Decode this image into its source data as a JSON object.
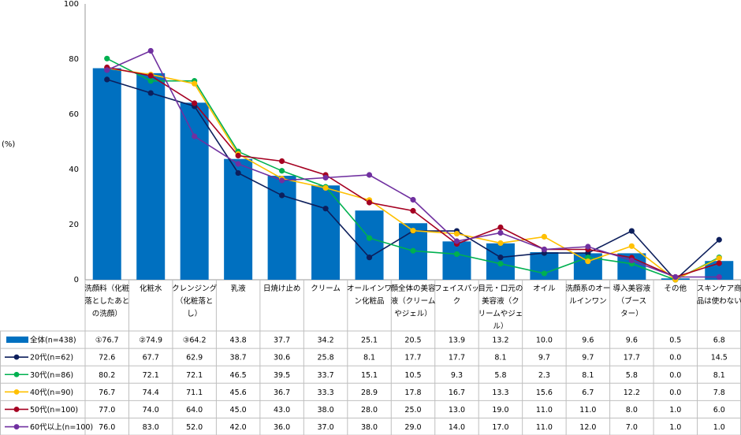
{
  "chart_data": {
    "type": "bar",
    "ylabel": "(%)",
    "ylim": [
      0,
      100
    ],
    "yticks": [
      0,
      20,
      40,
      60,
      80,
      100
    ],
    "categories": [
      [
        "洗顔料（化粧",
        "落としたあと",
        "の洗顔）"
      ],
      [
        "化粧水"
      ],
      [
        "クレンジング",
        "（化粧落と",
        "し）"
      ],
      [
        "乳液"
      ],
      [
        "日焼け止め"
      ],
      [
        "クリーム"
      ],
      [
        "オールインワ",
        "ン化粧品"
      ],
      [
        "顔全体の美容",
        "液（クリーム",
        "やジェル）"
      ],
      [
        "フェイスパッ",
        "ク"
      ],
      [
        "目元・口元の",
        "美容液（ク",
        "リームやジェ",
        "ル）"
      ],
      [
        "オイル"
      ],
      [
        "洗顔系のオー",
        "ルインワン"
      ],
      [
        "導入美容液",
        "（ブース",
        "ター）"
      ],
      [
        "その他"
      ],
      [
        "スキンケア商",
        "品は使わない"
      ]
    ],
    "bar_series": {
      "name": "全体(n=438)",
      "color": "#0070C0",
      "values": [
        76.7,
        74.9,
        64.2,
        43.8,
        37.7,
        34.2,
        25.1,
        20.5,
        13.9,
        13.2,
        10.0,
        9.6,
        9.6,
        0.5,
        6.8
      ],
      "table_labels": [
        "①76.7",
        "②74.9",
        "③64.2",
        "43.8",
        "37.7",
        "34.2",
        "25.1",
        "20.5",
        "13.9",
        "13.2",
        "10.0",
        "9.6",
        "9.6",
        "0.5",
        "6.8"
      ]
    },
    "line_series": [
      {
        "name": "20代(n=62)",
        "color": "#0D1F5C",
        "values": [
          72.6,
          67.7,
          62.9,
          38.7,
          30.6,
          25.8,
          8.1,
          17.7,
          17.7,
          8.1,
          9.7,
          9.7,
          17.7,
          0.0,
          14.5
        ],
        "table_labels": [
          "72.6",
          "67.7",
          "62.9",
          "38.7",
          "30.6",
          "25.8",
          "8.1",
          "17.7",
          "17.7",
          "8.1",
          "9.7",
          "9.7",
          "17.7",
          "0.0",
          "14.5"
        ]
      },
      {
        "name": "30代(n=86)",
        "color": "#00B050",
        "values": [
          80.2,
          72.1,
          72.1,
          46.5,
          39.5,
          33.7,
          15.1,
          10.5,
          9.3,
          5.8,
          2.3,
          8.1,
          5.8,
          0.0,
          8.1
        ],
        "table_labels": [
          "80.2",
          "72.1",
          "72.1",
          "46.5",
          "39.5",
          "33.7",
          "15.1",
          "10.5",
          "9.3",
          "5.8",
          "2.3",
          "8.1",
          "5.8",
          "0.0",
          "8.1"
        ]
      },
      {
        "name": "40代(n=90)",
        "color": "#FFC000",
        "values": [
          76.7,
          74.4,
          71.1,
          45.6,
          36.7,
          33.3,
          28.9,
          17.8,
          16.7,
          13.3,
          15.6,
          6.7,
          12.2,
          0.0,
          7.8
        ],
        "table_labels": [
          "76.7",
          "74.4",
          "71.1",
          "45.6",
          "36.7",
          "33.3",
          "28.9",
          "17.8",
          "16.7",
          "13.3",
          "15.6",
          "6.7",
          "12.2",
          "0.0",
          "7.8"
        ]
      },
      {
        "name": "50代(n=100)",
        "color": "#A50021",
        "values": [
          77.0,
          74.0,
          64.0,
          45.0,
          43.0,
          38.0,
          28.0,
          25.0,
          13.0,
          19.0,
          11.0,
          11.0,
          8.0,
          1.0,
          6.0
        ],
        "table_labels": [
          "77.0",
          "74.0",
          "64.0",
          "45.0",
          "43.0",
          "38.0",
          "28.0",
          "25.0",
          "13.0",
          "19.0",
          "11.0",
          "11.0",
          "8.0",
          "1.0",
          "6.0"
        ]
      },
      {
        "name": "60代以上(n=100)",
        "color": "#7030A0",
        "values": [
          76.0,
          83.0,
          52.0,
          42.0,
          36.0,
          37.0,
          38.0,
          29.0,
          14.0,
          17.0,
          11.0,
          12.0,
          7.0,
          1.0,
          1.0
        ],
        "table_labels": [
          "76.0",
          "83.0",
          "52.0",
          "42.0",
          "36.0",
          "37.0",
          "38.0",
          "29.0",
          "14.0",
          "17.0",
          "11.0",
          "12.0",
          "7.0",
          "1.0",
          "1.0"
        ]
      }
    ]
  }
}
